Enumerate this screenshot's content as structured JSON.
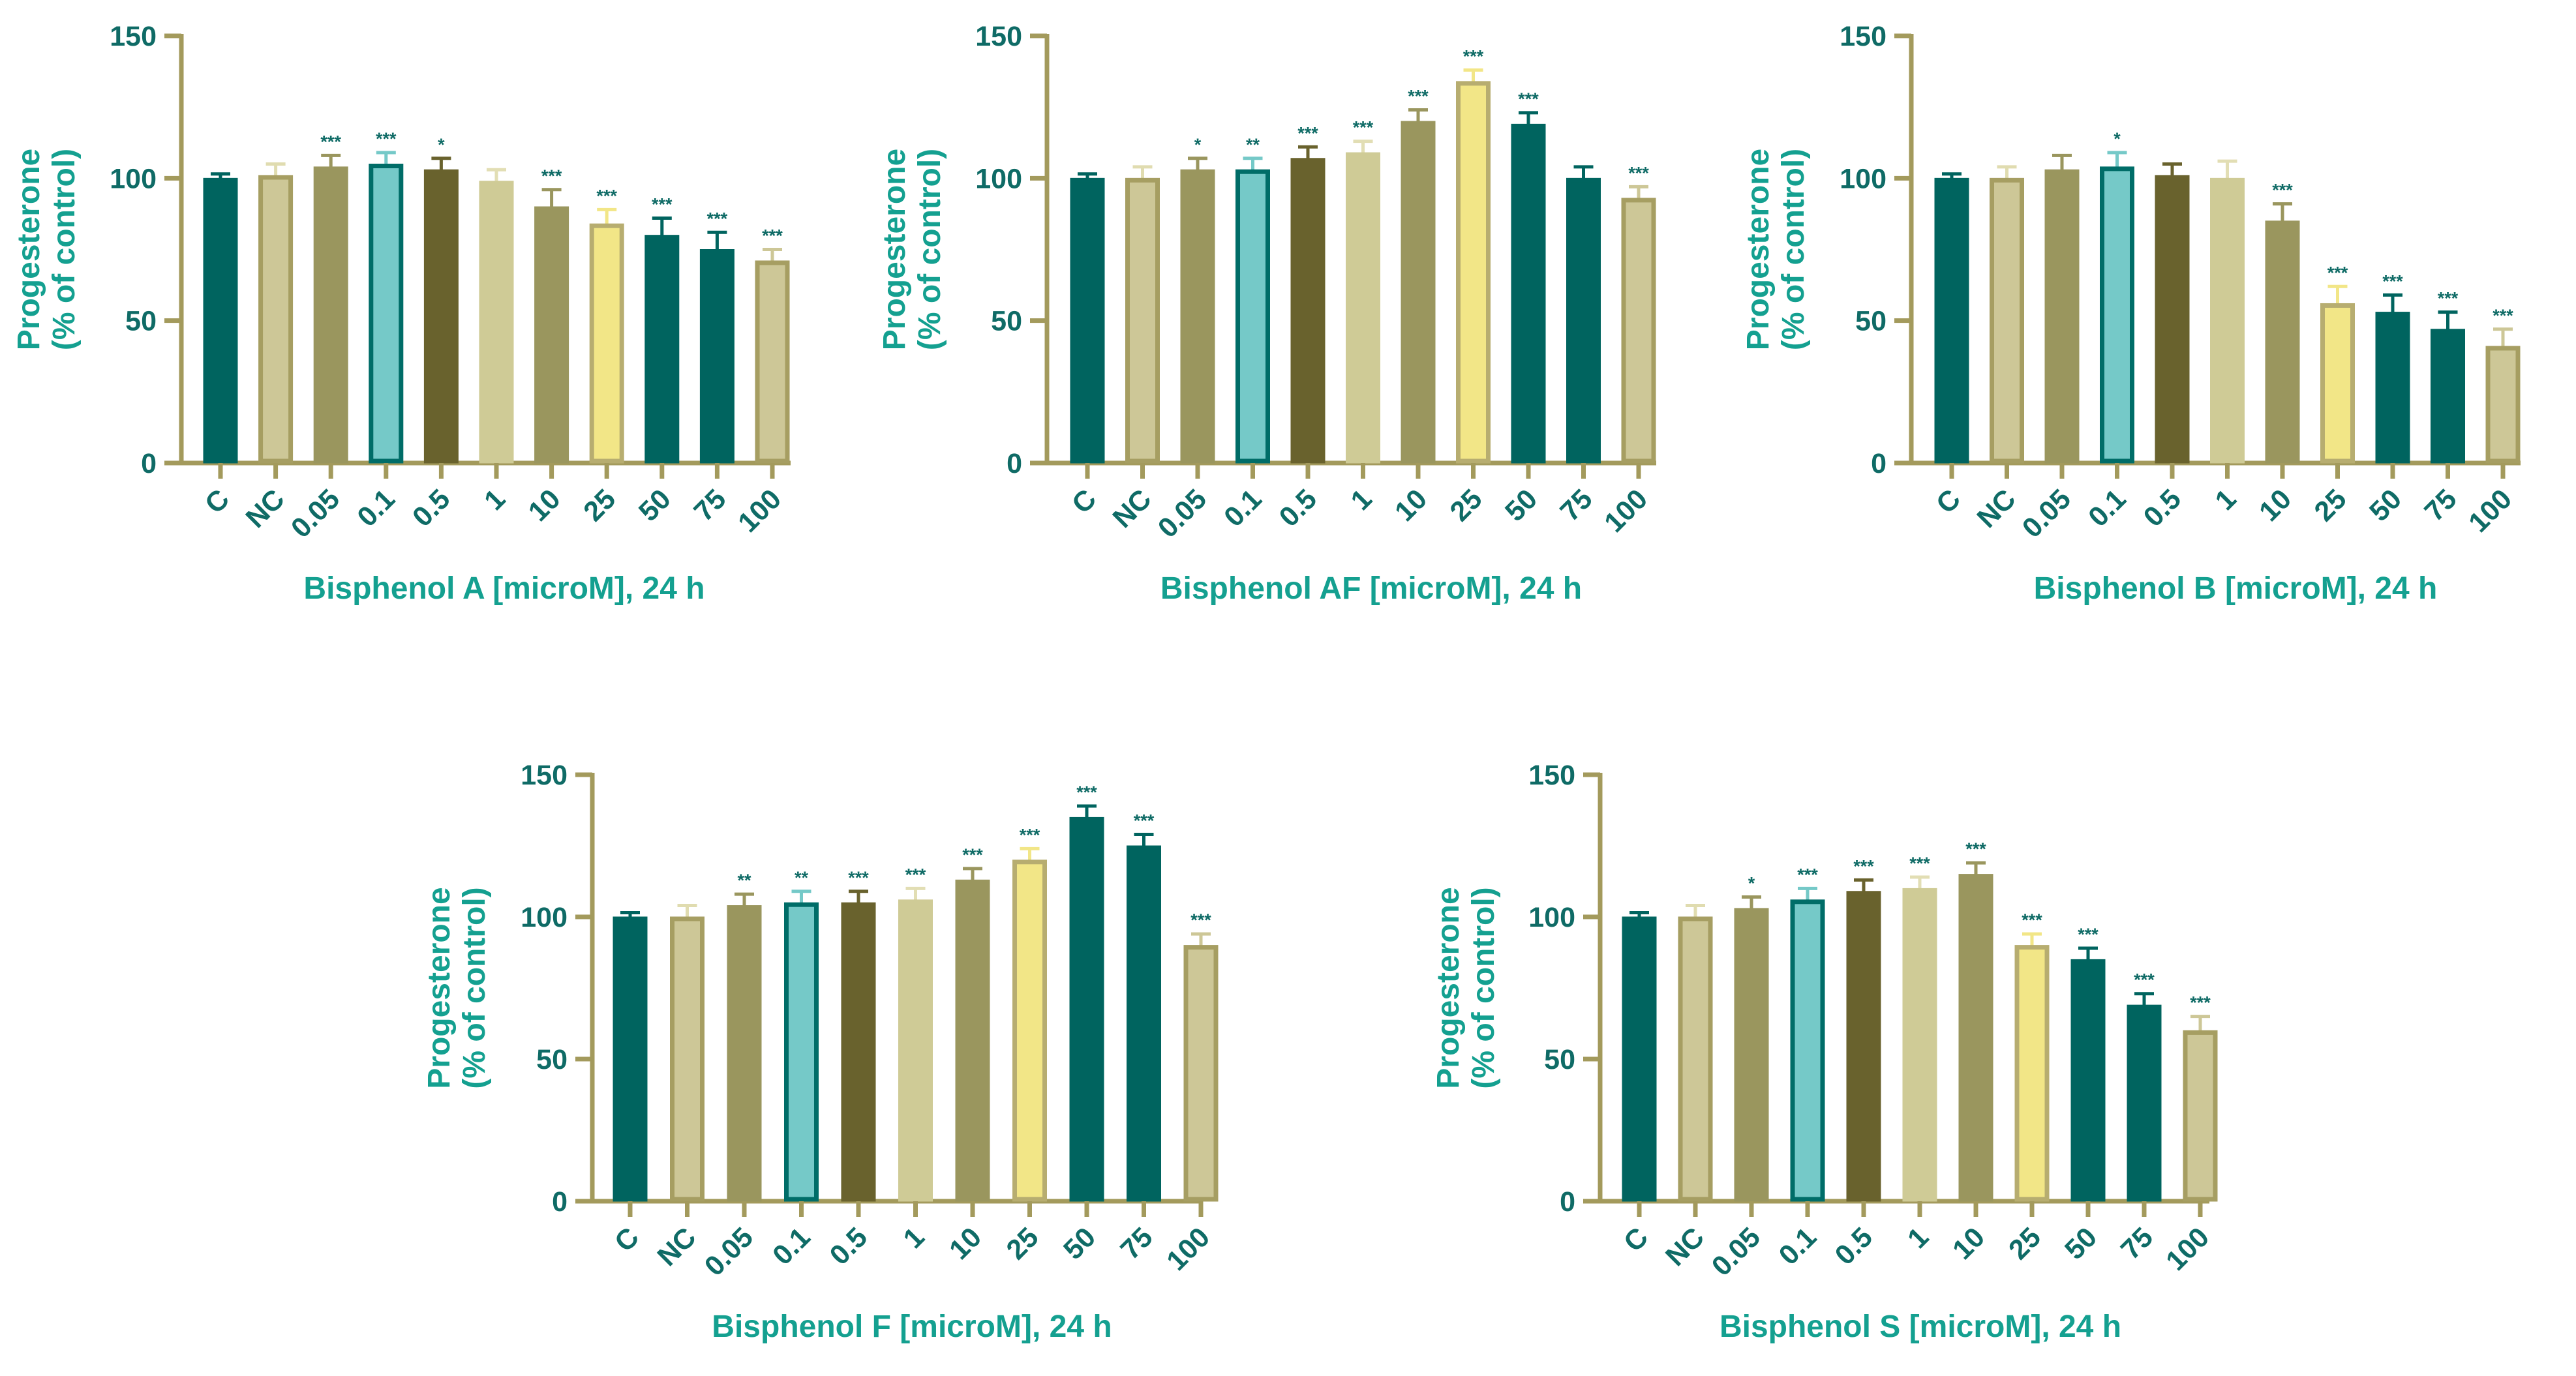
{
  "chart_data": [
    {
      "type": "bar",
      "title": "",
      "xlabel": "Bisphenol A [microM], 24 h",
      "ylabel_lines": [
        "Progesterone",
        "(% of control)"
      ],
      "ylim": [
        0,
        150
      ],
      "yticks": [
        0,
        50,
        100,
        150
      ],
      "categories": [
        "C",
        "NC",
        "0.05",
        "0.1",
        "0.5",
        "1",
        "10",
        "25",
        "50",
        "75",
        "100"
      ],
      "values": [
        100,
        101,
        104,
        105,
        103,
        99,
        90,
        84,
        80,
        75,
        71
      ],
      "errors": [
        1.5,
        4,
        4,
        4,
        4,
        4,
        6,
        5,
        6,
        6,
        4
      ],
      "significance": [
        "",
        "",
        "***",
        "***",
        "*",
        "",
        "***",
        "***",
        "***",
        "***",
        "***"
      ]
    },
    {
      "type": "bar",
      "title": "",
      "xlabel": "Bisphenol AF [microM], 24 h",
      "ylabel_lines": [
        "Progesterone",
        "(% of control)"
      ],
      "ylim": [
        0,
        150
      ],
      "yticks": [
        0,
        50,
        100,
        150
      ],
      "categories": [
        "C",
        "NC",
        "0.05",
        "0.1",
        "0.5",
        "1",
        "10",
        "25",
        "50",
        "75",
        "100"
      ],
      "values": [
        100,
        100,
        103,
        103,
        107,
        109,
        120,
        134,
        119,
        100,
        93
      ],
      "errors": [
        1.5,
        4,
        4,
        4,
        4,
        4,
        4,
        4,
        4,
        4,
        4
      ],
      "significance": [
        "",
        "",
        "*",
        "**",
        "***",
        "***",
        "***",
        "***",
        "***",
        "",
        "***"
      ]
    },
    {
      "type": "bar",
      "title": "",
      "xlabel": "Bisphenol B [microM], 24 h",
      "ylabel_lines": [
        "Progesterone",
        "(% of control)"
      ],
      "ylim": [
        0,
        150
      ],
      "yticks": [
        0,
        50,
        100,
        150
      ],
      "categories": [
        "C",
        "NC",
        "0.05",
        "0.1",
        "0.5",
        "1",
        "10",
        "25",
        "50",
        "75",
        "100"
      ],
      "values": [
        100,
        100,
        103,
        104,
        101,
        100,
        85,
        56,
        53,
        47,
        41
      ],
      "errors": [
        1.5,
        4,
        5,
        5,
        4,
        6,
        6,
        6,
        6,
        6,
        6
      ],
      "significance": [
        "",
        "",
        "",
        "*",
        "",
        "",
        "***",
        "***",
        "***",
        "***",
        "***"
      ]
    },
    {
      "type": "bar",
      "title": "",
      "xlabel": "Bisphenol F [microM], 24 h",
      "ylabel_lines": [
        "Progesterone",
        "(% of control)"
      ],
      "ylim": [
        0,
        150
      ],
      "yticks": [
        0,
        50,
        100,
        150
      ],
      "categories": [
        "C",
        "NC",
        "0.05",
        "0.1",
        "0.5",
        "1",
        "10",
        "25",
        "50",
        "75",
        "100"
      ],
      "values": [
        100,
        100,
        104,
        105,
        105,
        106,
        113,
        120,
        135,
        125,
        90
      ],
      "errors": [
        1.5,
        4,
        4,
        4,
        4,
        4,
        4,
        4,
        4,
        4,
        4
      ],
      "significance": [
        "",
        "",
        "**",
        "**",
        "***",
        "***",
        "***",
        "***",
        "***",
        "***",
        "***"
      ]
    },
    {
      "type": "bar",
      "title": "",
      "xlabel": "Bisphenol S [microM], 24 h",
      "ylabel_lines": [
        "Progesterone",
        "(% of control)"
      ],
      "ylim": [
        0,
        150
      ],
      "yticks": [
        0,
        50,
        100,
        150
      ],
      "categories": [
        "C",
        "NC",
        "0.05",
        "0.1",
        "0.5",
        "1",
        "10",
        "25",
        "50",
        "75",
        "100"
      ],
      "values": [
        100,
        100,
        103,
        106,
        109,
        110,
        115,
        90,
        85,
        69,
        60
      ],
      "errors": [
        1.5,
        4,
        4,
        4,
        4,
        4,
        4,
        4,
        4,
        4,
        5
      ],
      "significance": [
        "",
        "",
        "*",
        "***",
        "***",
        "***",
        "***",
        "***",
        "***",
        "***",
        "***"
      ]
    }
  ],
  "bar_colors": [
    "#00645f",
    "#cdc797",
    "#9a965e",
    "#75c9c8",
    "#69622d",
    "#cfcb96",
    "#9a965e",
    "#f2e687",
    "#00645f",
    "#00645f",
    "#cdc797"
  ],
  "bar_edge_colors": [
    "#00645f",
    "#a69e62",
    "#9a965e",
    "#006d68",
    "#69622d",
    "#cfcb96",
    "#9a965e",
    "#b7ad70",
    "#00645f",
    "#00645f",
    "#a69e62"
  ],
  "errorbar_colors": [
    "#00645f",
    "#e0dcb0",
    "#9a965e",
    "#75c9c8",
    "#69622d",
    "#e2deb4",
    "#9a965e",
    "#f2e687",
    "#00645f",
    "#00645f",
    "#cdc797"
  ],
  "axis_color": "#a39a5c",
  "tick_label_color": "#0f6b66",
  "axis_title_color": "#14a090"
}
